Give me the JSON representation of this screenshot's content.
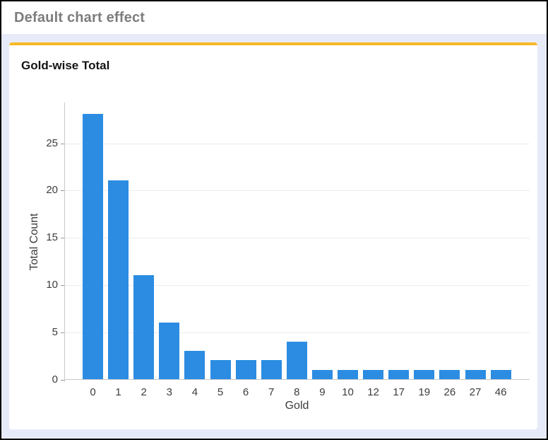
{
  "window": {
    "title": "Default chart effect"
  },
  "theme": {
    "frame_border": "#000000",
    "header_bg": "#ffffff",
    "header_text": "#7d7d7d",
    "page_bg": "#e7ebf9",
    "card_bg": "#ffffff",
    "accent_orange": "#f9b826",
    "bar_blue": "#2b8ce2",
    "gridline": "#ececec",
    "axis_line": "#c8c8c8",
    "tick_mark": "#9a9a9a",
    "tick_label": "#3c3c3c",
    "chart_title_text": "#141414"
  },
  "chart_data": {
    "type": "bar",
    "title": "Gold-wise Total",
    "xlabel": "Gold",
    "ylabel": "Total Count",
    "categories": [
      "0",
      "1",
      "2",
      "3",
      "4",
      "5",
      "6",
      "7",
      "8",
      "9",
      "10",
      "12",
      "17",
      "19",
      "26",
      "27",
      "46"
    ],
    "values": [
      28,
      21,
      11,
      6,
      3,
      2,
      2,
      2,
      4,
      1,
      1,
      1,
      1,
      1,
      1,
      1,
      1
    ],
    "yticks": [
      0,
      5,
      10,
      15,
      20,
      25
    ],
    "ylim": [
      0,
      29.3
    ],
    "grid": true,
    "legend_position": "none",
    "bar_color": "#2b8ce2"
  }
}
